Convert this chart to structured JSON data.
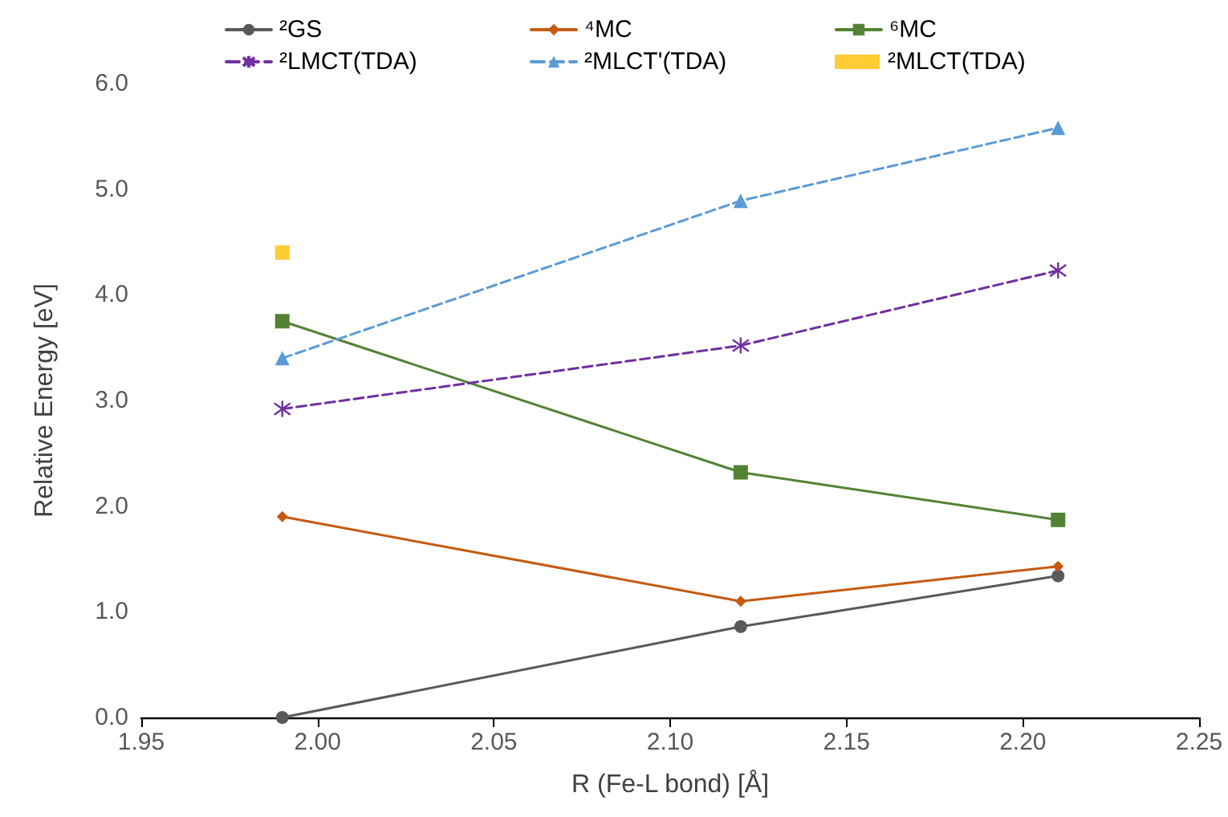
{
  "chart_data": {
    "type": "line",
    "xlabel": "R (Fe-L bond) [Å]",
    "ylabel": "Relative Energy [eV]",
    "x": [
      1.99,
      2.12,
      2.21
    ],
    "series": [
      {
        "name": "²GS",
        "color": "#595959",
        "marker": "circle",
        "line_style": "solid",
        "values": [
          0,
          0.86,
          1.34
        ]
      },
      {
        "name": "⁴MC",
        "color": "#c55a11",
        "marker": "diamond",
        "line_style": "solid",
        "values": [
          1.9,
          1.1,
          1.43
        ]
      },
      {
        "name": "⁶MC",
        "color": "#548235",
        "marker": "square",
        "line_style": "solid",
        "values": [
          3.75,
          2.32,
          1.87
        ]
      },
      {
        "name": "²LMCT(TDA)",
        "color": "#7030a0",
        "marker": "cross",
        "line_style": "dashed",
        "values": [
          2.92,
          3.52,
          4.23
        ]
      },
      {
        "name": "²MLCT'(TDA)",
        "color": "#5b9bd5",
        "marker": "triangle",
        "line_style": "dashed",
        "values": [
          3.4,
          4.89,
          5.58
        ]
      },
      {
        "name": "²MLCT(TDA)",
        "type": "scatter",
        "color": "#ffc000",
        "marker": "square",
        "x": [
          1.99
        ],
        "values": [
          4.4
        ]
      }
    ],
    "xlim": [
      1.95,
      2.25
    ],
    "xticks": [
      1.95,
      {
        "value": 2.0,
        "label": "2.00"
      },
      2.05,
      {
        "value": 2.1,
        "label": "2.10"
      },
      2.15,
      {
        "value": 2.2,
        "label": "2.20"
      },
      2.25
    ],
    "ylim": [
      0,
      6
    ],
    "yticks": [
      {
        "value": 0,
        "label": "0.0"
      },
      {
        "value": 1,
        "label": "1.0"
      },
      {
        "value": 2,
        "label": "2.0"
      },
      {
        "value": 3,
        "label": "3.0"
      },
      {
        "value": 4,
        "label": "4.0"
      },
      {
        "value": 5,
        "label": "5.0"
      },
      {
        "value": 6,
        "label": "6.0"
      }
    ],
    "grid": false,
    "legend": "top"
  }
}
